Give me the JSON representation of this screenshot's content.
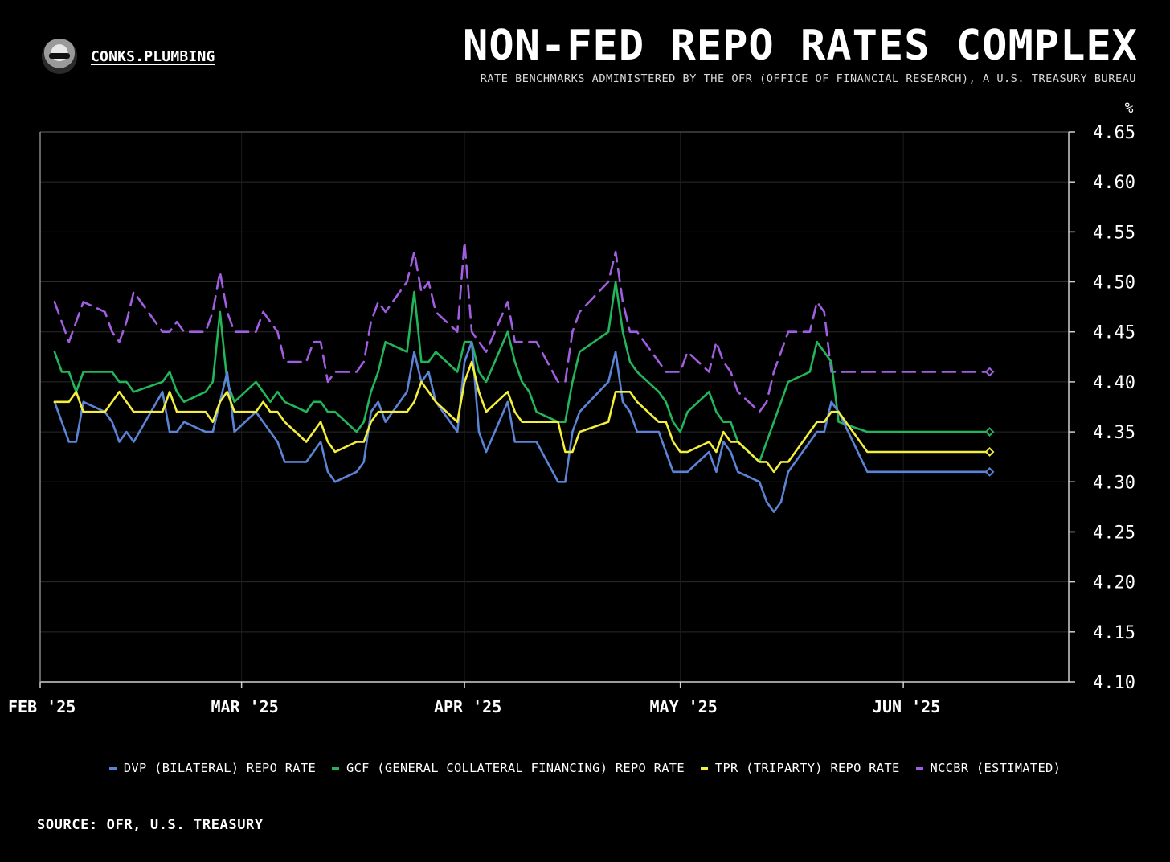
{
  "header": {
    "brand": "CONKS.PLUMBING",
    "title": "NON-FED REPO RATES COMPLEX",
    "subtitle": "RATE BENCHMARKS ADMINISTERED BY THE OFR (OFFICE OF FINANCIAL RESEARCH), A U.S. TREASURY BUREAU",
    "logo_icon": "ninja-avatar-icon"
  },
  "footer": {
    "source": "SOURCE: OFR, U.S. TREASURY"
  },
  "chart_data": {
    "type": "line",
    "title": "NON-FED REPO RATES COMPLEX",
    "ylabel": "%",
    "ylim": [
      4.1,
      4.65
    ],
    "yticks": [
      4.1,
      4.15,
      4.2,
      4.25,
      4.3,
      4.35,
      4.4,
      4.45,
      4.5,
      4.55,
      4.6,
      4.65
    ],
    "ytick_labels": [
      "4.10",
      "4.15",
      "4.20",
      "4.25",
      "4.30",
      "4.35",
      "4.40",
      "4.45",
      "4.50",
      "4.55",
      "4.60",
      "4.65"
    ],
    "xlim": [
      "2025-02-01",
      "2025-06-24"
    ],
    "xticks": [
      {
        "date": "2025-02-01",
        "label": "FEB '25"
      },
      {
        "date": "2025-03-01",
        "label": "MAR '25"
      },
      {
        "date": "2025-04-01",
        "label": "APR '25"
      },
      {
        "date": "2025-05-01",
        "label": "MAY '25"
      },
      {
        "date": "2025-06-01",
        "label": "JUN '25"
      }
    ],
    "y_axis_side": "right",
    "grid": true,
    "legend_position": "bottom",
    "dates": [
      "2025-02-03",
      "2025-02-04",
      "2025-02-05",
      "2025-02-06",
      "2025-02-07",
      "2025-02-10",
      "2025-02-11",
      "2025-02-12",
      "2025-02-13",
      "2025-02-14",
      "2025-02-18",
      "2025-02-19",
      "2025-02-20",
      "2025-02-21",
      "2025-02-24",
      "2025-02-25",
      "2025-02-26",
      "2025-02-27",
      "2025-02-28",
      "2025-03-03",
      "2025-03-04",
      "2025-03-05",
      "2025-03-06",
      "2025-03-07",
      "2025-03-10",
      "2025-03-11",
      "2025-03-12",
      "2025-03-13",
      "2025-03-14",
      "2025-03-17",
      "2025-03-18",
      "2025-03-19",
      "2025-03-20",
      "2025-03-21",
      "2025-03-24",
      "2025-03-25",
      "2025-03-26",
      "2025-03-27",
      "2025-03-28",
      "2025-03-31",
      "2025-04-01",
      "2025-04-02",
      "2025-04-03",
      "2025-04-04",
      "2025-04-07",
      "2025-04-08",
      "2025-04-09",
      "2025-04-10",
      "2025-04-11",
      "2025-04-14",
      "2025-04-15",
      "2025-04-16",
      "2025-04-17",
      "2025-04-21",
      "2025-04-22",
      "2025-04-23",
      "2025-04-24",
      "2025-04-25",
      "2025-04-28",
      "2025-04-29",
      "2025-04-30",
      "2025-05-01",
      "2025-05-02",
      "2025-05-05",
      "2025-05-06",
      "2025-05-07",
      "2025-05-08",
      "2025-05-09",
      "2025-05-12",
      "2025-05-13",
      "2025-05-14",
      "2025-05-15",
      "2025-05-16",
      "2025-05-19",
      "2025-05-20",
      "2025-05-21",
      "2025-05-22",
      "2025-05-23",
      "2025-05-27",
      "2025-05-28",
      "2025-05-29",
      "2025-05-30",
      "2025-06-02",
      "2025-06-03",
      "2025-06-04",
      "2025-06-05",
      "2025-06-06",
      "2025-06-09",
      "2025-06-10",
      "2025-06-11",
      "2025-06-12",
      "2025-06-13"
    ],
    "series": [
      {
        "name": "DVP (BILATERAL) REPO RATE",
        "color": "#5b84d6",
        "dashed": false,
        "values": [
          4.38,
          4.36,
          4.34,
          4.34,
          4.38,
          4.37,
          4.36,
          4.34,
          4.35,
          4.34,
          4.39,
          4.35,
          4.35,
          4.36,
          4.35,
          4.35,
          4.38,
          4.41,
          4.35,
          4.37,
          4.36,
          4.35,
          4.34,
          4.32,
          4.32,
          4.33,
          4.34,
          4.31,
          4.3,
          4.31,
          4.32,
          4.37,
          4.38,
          4.36,
          4.39,
          4.43,
          4.4,
          4.41,
          4.38,
          4.35,
          4.42,
          4.44,
          4.35,
          4.33,
          4.38,
          4.34,
          4.34,
          4.34,
          4.34,
          4.3,
          4.3,
          4.35,
          4.37,
          4.4,
          4.43,
          4.38,
          4.37,
          4.35,
          4.35,
          4.33,
          4.31,
          4.31,
          4.31,
          4.33,
          4.31,
          4.34,
          4.33,
          4.31,
          4.3,
          4.28,
          4.27,
          4.28,
          4.31,
          4.34,
          4.35,
          4.35,
          4.38,
          4.37,
          4.31,
          4.31,
          4.31,
          4.31,
          4.31,
          4.31,
          4.31,
          4.31,
          4.31,
          4.31,
          4.31,
          4.31,
          4.31,
          4.31
        ]
      },
      {
        "name": "GCF (GENERAL COLLATERAL FINANCING) REPO RATE",
        "color": "#22b55a",
        "dashed": false,
        "values": [
          4.43,
          4.41,
          4.41,
          4.39,
          4.41,
          4.41,
          4.41,
          4.4,
          4.4,
          4.39,
          4.4,
          4.41,
          4.39,
          4.38,
          4.39,
          4.4,
          4.47,
          4.4,
          4.38,
          4.4,
          4.39,
          4.38,
          4.39,
          4.38,
          4.37,
          4.38,
          4.38,
          4.37,
          4.37,
          4.35,
          4.36,
          4.39,
          4.41,
          4.44,
          4.43,
          4.49,
          4.42,
          4.42,
          4.43,
          4.41,
          4.44,
          4.44,
          4.41,
          4.4,
          4.45,
          4.42,
          4.4,
          4.39,
          4.37,
          4.36,
          4.36,
          4.4,
          4.43,
          4.45,
          4.5,
          4.45,
          4.42,
          4.41,
          4.39,
          4.38,
          4.36,
          4.35,
          4.37,
          4.39,
          4.37,
          4.36,
          4.36,
          4.34,
          4.32,
          4.34,
          4.36,
          4.38,
          4.4,
          4.41,
          4.44,
          4.43,
          4.42,
          4.36,
          4.35,
          4.35,
          4.35,
          4.35,
          4.35,
          4.35,
          4.35,
          4.35,
          4.35,
          4.35,
          4.35,
          4.35,
          4.35,
          4.35
        ]
      },
      {
        "name": "TPR (TRIPARTY) REPO RATE",
        "color": "#f4ef3a",
        "dashed": false,
        "values": [
          4.38,
          4.38,
          4.38,
          4.39,
          4.37,
          4.37,
          4.38,
          4.39,
          4.38,
          4.37,
          4.37,
          4.39,
          4.37,
          4.37,
          4.37,
          4.36,
          4.38,
          4.39,
          4.37,
          4.37,
          4.38,
          4.37,
          4.37,
          4.36,
          4.34,
          4.35,
          4.36,
          4.34,
          4.33,
          4.34,
          4.34,
          4.36,
          4.37,
          4.37,
          4.37,
          4.38,
          4.4,
          4.39,
          4.38,
          4.36,
          4.4,
          4.42,
          4.39,
          4.37,
          4.39,
          4.37,
          4.36,
          4.36,
          4.36,
          4.36,
          4.33,
          4.33,
          4.35,
          4.36,
          4.39,
          4.39,
          4.39,
          4.38,
          4.36,
          4.36,
          4.34,
          4.33,
          4.33,
          4.34,
          4.33,
          4.35,
          4.34,
          4.34,
          4.32,
          4.32,
          4.31,
          4.32,
          4.32,
          4.35,
          4.36,
          4.36,
          4.37,
          4.37,
          4.33,
          4.33,
          4.33,
          4.33,
          4.33,
          4.33,
          4.33,
          4.33,
          4.33,
          4.33,
          4.33,
          4.33,
          4.33,
          4.33
        ]
      },
      {
        "name": "NCCBR (ESTIMATED)",
        "color": "#a25ee0",
        "dashed": true,
        "values": [
          4.48,
          4.46,
          4.44,
          4.46,
          4.48,
          4.47,
          4.45,
          4.44,
          4.46,
          4.49,
          4.45,
          4.45,
          4.46,
          4.45,
          4.45,
          4.47,
          4.51,
          4.47,
          4.45,
          4.45,
          4.47,
          4.46,
          4.45,
          4.42,
          4.42,
          4.44,
          4.44,
          4.4,
          4.41,
          4.41,
          4.42,
          4.46,
          4.48,
          4.47,
          4.5,
          4.53,
          4.49,
          4.5,
          4.47,
          4.45,
          4.54,
          4.45,
          4.44,
          4.43,
          4.48,
          4.44,
          4.44,
          4.44,
          4.44,
          4.4,
          4.4,
          4.45,
          4.47,
          4.5,
          4.53,
          4.48,
          4.45,
          4.45,
          4.42,
          4.41,
          4.41,
          4.41,
          4.43,
          4.41,
          4.44,
          4.42,
          4.41,
          4.39,
          4.37,
          4.38,
          4.41,
          4.43,
          4.45,
          4.45,
          4.48,
          4.47,
          4.41,
          4.41,
          4.41,
          4.41,
          4.41,
          4.41,
          4.41,
          4.41,
          4.41,
          4.41,
          4.41,
          4.41,
          4.41,
          4.41,
          4.41,
          4.41
        ]
      }
    ]
  }
}
